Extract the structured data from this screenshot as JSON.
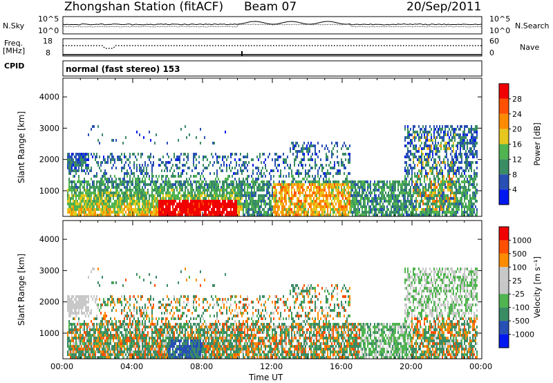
{
  "header": {
    "station": "Zhongshan Station (fitACF)",
    "beam": "Beam 07",
    "date": "20/Sep/2011"
  },
  "nsky_panel": {
    "left_label": "N.Sky",
    "right_label": "N.Search",
    "left_ticks": [
      "10^5",
      "10^0"
    ],
    "right_ticks": [
      "10^5",
      "10^0"
    ]
  },
  "freq_panel": {
    "left_label_top": "Freq.",
    "left_label_bottom": "[MHz]",
    "right_label": "Nave",
    "left_ticks": [
      "18",
      "8"
    ],
    "right_ticks": [
      "60",
      "0"
    ]
  },
  "cpid": {
    "label": "CPID",
    "text": "normal (fast stereo) 153"
  },
  "colors": {
    "power": [
      "#0018f0",
      "#2850b4",
      "#3a8c64",
      "#50b450",
      "#e6c81e",
      "#ff8c00",
      "#ff5000",
      "#f00000"
    ],
    "velocity": [
      "#f00000",
      "#ff5000",
      "#ff8c00",
      "#c8c8c8",
      "#c8c8c8",
      "#50b450",
      "#3a8c64",
      "#2850b4",
      "#0018f0"
    ]
  },
  "chart_data": [
    {
      "type": "heatmap",
      "panel": "power",
      "ylabel": "Slant Range [km]",
      "yticks": [
        "1000",
        "2000",
        "3000",
        "4000"
      ],
      "ylim": [
        180,
        4600
      ],
      "xticks": [
        "00:00",
        "04:00",
        "08:00",
        "12:00",
        "16:00",
        "20:00",
        "00:00"
      ],
      "colorbar": {
        "label": "Power [dB]",
        "ticks": [
          "4",
          "8",
          "12",
          "16",
          "20",
          "24",
          "28"
        ],
        "range": [
          0,
          30
        ]
      },
      "approx_echo_regions": [
        {
          "x": [
            0.3,
            10.2
          ],
          "y": [
            300,
            1300
          ],
          "peak_dB": 28
        },
        {
          "x": [
            5.5,
            10.0
          ],
          "y": [
            250,
            700
          ],
          "peak_dB": 30
        },
        {
          "x": [
            10.5,
            16.5
          ],
          "y": [
            400,
            1200
          ],
          "peak_dB": 24
        },
        {
          "x": [
            16.5,
            21.0
          ],
          "y": [
            300,
            1000
          ],
          "peak_dB": 12
        },
        {
          "x": [
            19.5,
            23.8
          ],
          "y": [
            400,
            3000
          ],
          "peak_dB": 24
        }
      ]
    },
    {
      "type": "heatmap",
      "panel": "velocity",
      "ylabel": "Slant Range [km]",
      "yticks": [
        "1000",
        "2000",
        "3000",
        "4000"
      ],
      "ylim": [
        180,
        4600
      ],
      "xticks": [
        "00:00",
        "04:00",
        "08:00",
        "12:00",
        "16:00",
        "20:00",
        "00:00"
      ],
      "xlabel": "Time UT",
      "colorbar": {
        "label": "Velocity [m s⁻¹]",
        "ticks": [
          "1000",
          "500",
          "100",
          "25",
          "-25",
          "-100",
          "-500",
          "-1000"
        ]
      }
    },
    {
      "type": "line",
      "panel": "nsky-nsearch",
      "series": [
        {
          "name": "N.Sky",
          "style": "solid"
        },
        {
          "name": "N.Search",
          "style": "dotted"
        }
      ]
    },
    {
      "type": "line",
      "panel": "freq-nave",
      "series": [
        {
          "name": "Freq.",
          "style": "solid"
        },
        {
          "name": "Nave",
          "style": "dotted"
        }
      ]
    }
  ],
  "xlabel": "Time UT"
}
